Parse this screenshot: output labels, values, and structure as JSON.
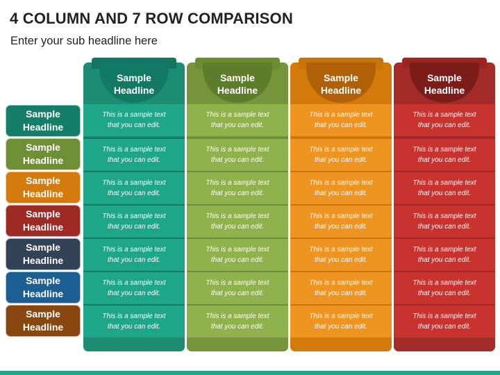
{
  "title": "4 COLUMN AND 7 ROW COMPARISON",
  "subtitle": "Enter your sub headline here",
  "columns": [
    {
      "heading": "Sample\nHeadline",
      "color_dark": "#127a64",
      "color_mid": "#1c8c72",
      "color_cell": "#1fa689",
      "color_line": "#137663"
    },
    {
      "heading": "Sample\nHeadline",
      "color_dark": "#5e7d2b",
      "color_mid": "#76953a",
      "color_cell": "#8fb24d",
      "color_line": "#6d8d35"
    },
    {
      "heading": "Sample\nHeadline",
      "color_dark": "#b06006",
      "color_mid": "#d37a0b",
      "color_cell": "#ef9321",
      "color_line": "#c97407"
    },
    {
      "heading": "Sample\nHeadline",
      "color_dark": "#7d1d1a",
      "color_mid": "#a32c28",
      "color_cell": "#c8322f",
      "color_line": "#9f2522"
    }
  ],
  "rows": [
    {
      "label": "Sample\nHeadline",
      "color": "#157e68"
    },
    {
      "label": "Sample\nHeadline",
      "color": "#6e8f34"
    },
    {
      "label": "Sample\nHeadline",
      "color": "#d57a0c"
    },
    {
      "label": "Sample\nHeadline",
      "color": "#9e2a26"
    },
    {
      "label": "Sample\nHeadline",
      "color": "#334256"
    },
    {
      "label": "Sample\nHeadline",
      "color": "#1d5f93"
    },
    {
      "label": "Sample\nHeadline",
      "color": "#87470f"
    }
  ],
  "cell_text": "This is a sample text\nthat you can edit.",
  "bottom_bar_color": "#1fa689"
}
